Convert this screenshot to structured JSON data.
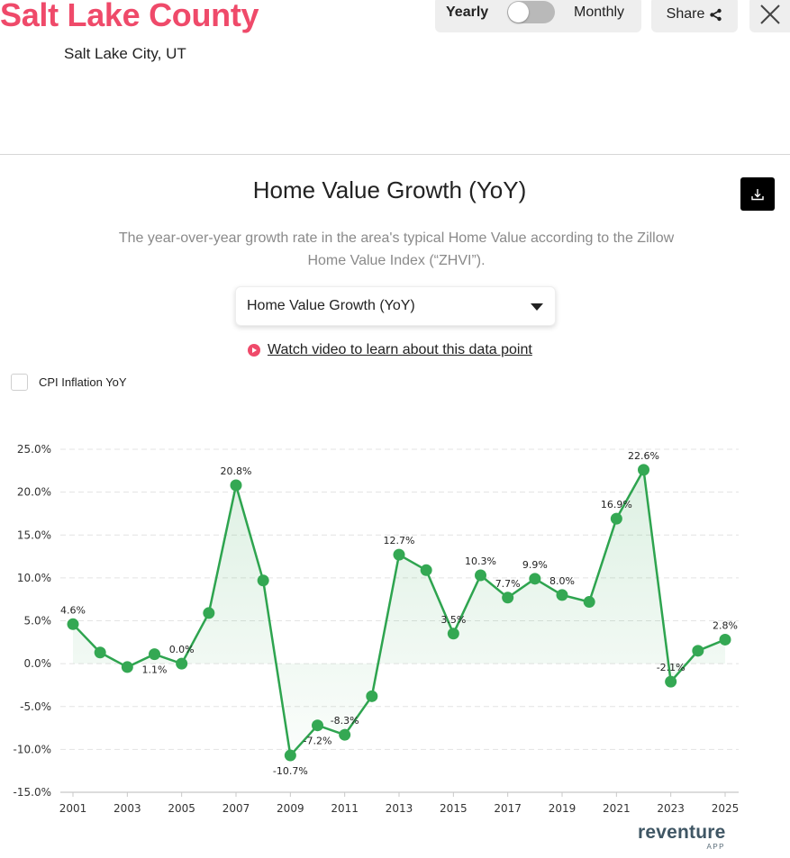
{
  "header": {
    "title": "Salt Lake County",
    "subtitle": "Salt Lake City, UT",
    "toggle": {
      "left_label": "Yearly",
      "right_label": "Monthly",
      "state": "Yearly"
    },
    "share_label": "Share",
    "close_icon": "close-icon"
  },
  "panel": {
    "title": "Home Value Growth (YoY)",
    "description": "The year-over-year growth rate in the area's typical Home Value according to the Zillow Home Value Index (“ZHVI”).",
    "download_icon": "download-icon",
    "select": {
      "value": "Home Value Growth (YoY)"
    },
    "video_link": "Watch video to learn about this data point",
    "cpi_checkbox": {
      "label": "CPI Inflation YoY",
      "checked": false
    }
  },
  "colors": {
    "brand": "#ef4a6a",
    "line": "#2ea44f",
    "point": "#34a853",
    "grid": "#e3e3e3"
  },
  "branding": {
    "name": "reventure",
    "sub": "APP"
  },
  "chart_data": {
    "type": "line",
    "title": "Home Value Growth (YoY)",
    "xlabel": "",
    "ylabel": "",
    "ylim": [
      -15,
      25
    ],
    "yticks": [
      "25.0%",
      "20.0%",
      "15.0%",
      "10.0%",
      "5.0%",
      "0.0%",
      "-5.0%",
      "-10.0%",
      "-15.0%"
    ],
    "ytick_values": [
      25,
      20,
      15,
      10,
      5,
      0,
      -5,
      -10,
      -15
    ],
    "xticks": [
      "2001",
      "2003",
      "2005",
      "2007",
      "2009",
      "2011",
      "2013",
      "2015",
      "2017",
      "2019",
      "2021",
      "2023",
      "2025"
    ],
    "grid": true,
    "legend": "none",
    "x": [
      2001,
      2002,
      2003,
      2004,
      2005,
      2006,
      2007,
      2008,
      2009,
      2010,
      2011,
      2012,
      2013,
      2014,
      2015,
      2016,
      2017,
      2018,
      2019,
      2020,
      2021,
      2022,
      2023,
      2024,
      2025
    ],
    "series": [
      {
        "name": "Home Value Growth (YoY)",
        "values": [
          4.6,
          1.3,
          -0.4,
          1.1,
          0.0,
          5.9,
          20.8,
          9.7,
          -10.7,
          -7.2,
          -8.3,
          -3.8,
          12.7,
          10.9,
          3.5,
          10.3,
          7.7,
          9.9,
          8.0,
          7.2,
          16.9,
          22.6,
          -2.1,
          1.5,
          2.8
        ]
      }
    ],
    "labels": [
      {
        "year": 2001,
        "text": "4.6%",
        "pos": "above"
      },
      {
        "year": 2004,
        "text": "1.1%",
        "pos": "below"
      },
      {
        "year": 2005,
        "text": "0.0%",
        "pos": "above"
      },
      {
        "year": 2007,
        "text": "20.8%",
        "pos": "above"
      },
      {
        "year": 2009,
        "text": "-10.7%",
        "pos": "below"
      },
      {
        "year": 2010,
        "text": "-7.2%",
        "pos": "below"
      },
      {
        "year": 2011,
        "text": "-8.3%",
        "pos": "above"
      },
      {
        "year": 2013,
        "text": "12.7%",
        "pos": "above"
      },
      {
        "year": 2015,
        "text": "3.5%",
        "pos": "above"
      },
      {
        "year": 2016,
        "text": "10.3%",
        "pos": "above"
      },
      {
        "year": 2017,
        "text": "7.7%",
        "pos": "above"
      },
      {
        "year": 2018,
        "text": "9.9%",
        "pos": "above"
      },
      {
        "year": 2019,
        "text": "8.0%",
        "pos": "above"
      },
      {
        "year": 2021,
        "text": "16.9%",
        "pos": "above"
      },
      {
        "year": 2022,
        "text": "22.6%",
        "pos": "above"
      },
      {
        "year": 2023,
        "text": "-2.1%",
        "pos": "above"
      },
      {
        "year": 2025,
        "text": "2.8%",
        "pos": "above"
      }
    ]
  }
}
